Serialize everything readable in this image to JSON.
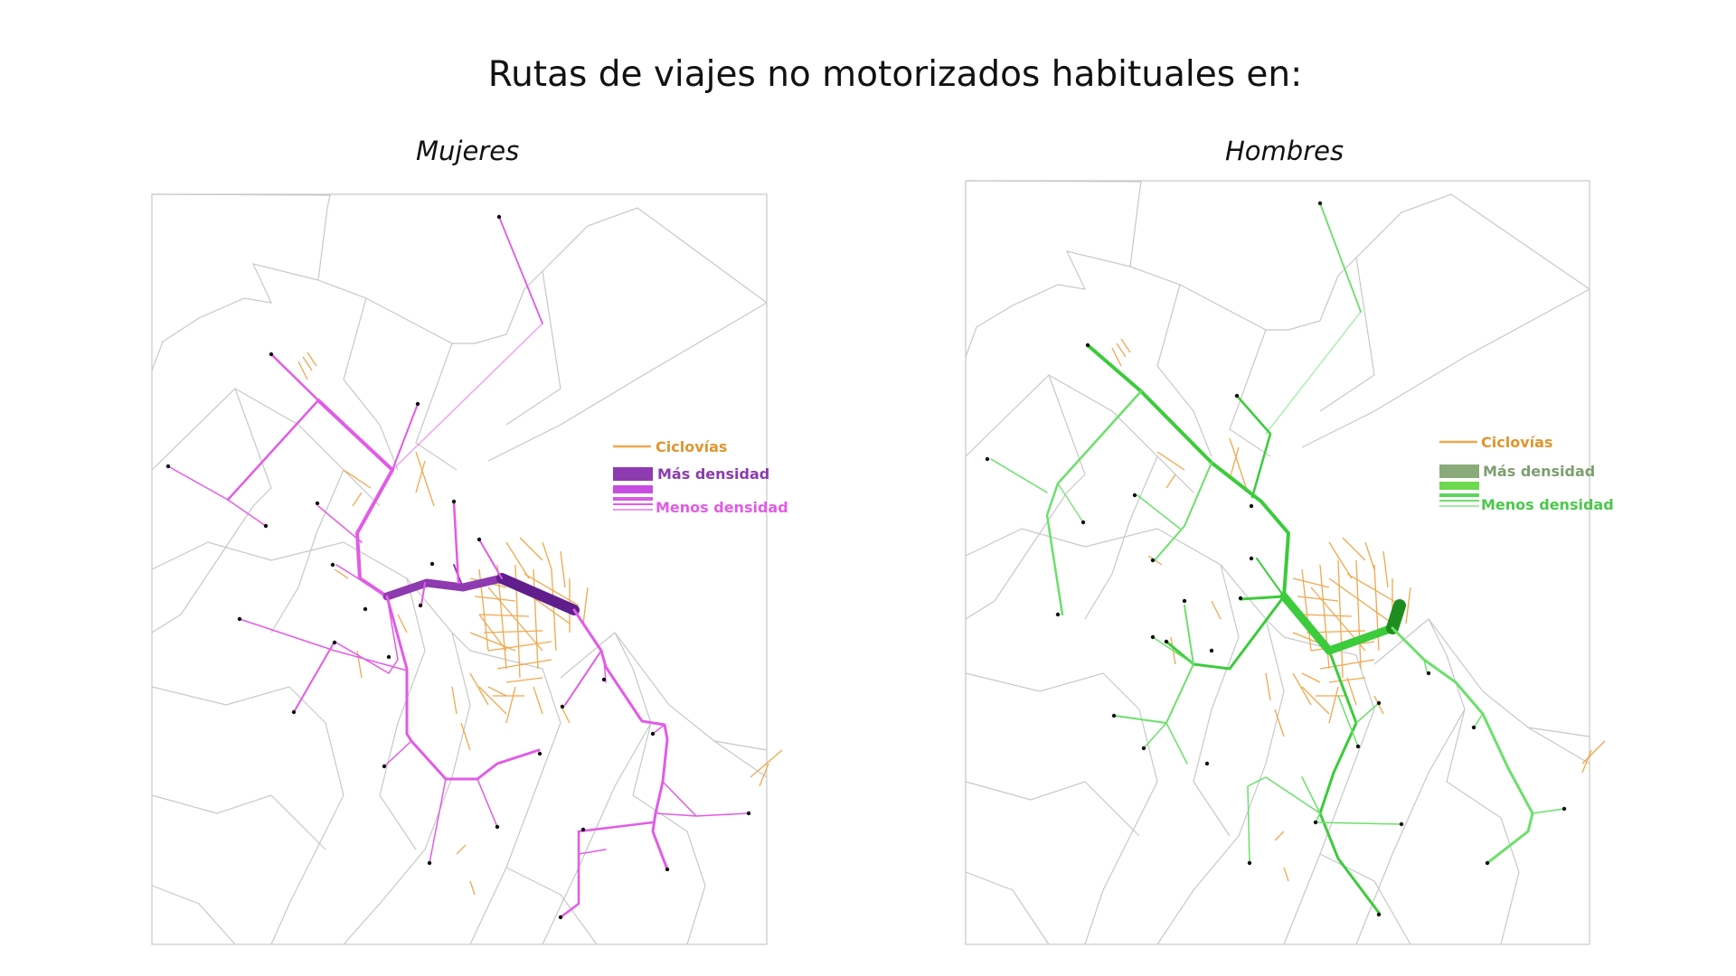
{
  "title": "Rutas de viajes no motorizados habituales en:",
  "colors": {
    "bike_lanes": "#F0A84E",
    "boundaries": "#C8C8C8",
    "mujeres_dark": "#5F1E8C",
    "mujeres_mid": "#8E3AB0",
    "mujeres_light": "#E25BE6",
    "hombres_dark": "#1E8C1E",
    "hombres_mid": "#3CCB3C",
    "hombres_light": "#6BE06B",
    "hombres_legend_high": "#8AAA7A"
  },
  "maps": [
    {
      "id": "mujeres",
      "title": "Mujeres",
      "legend": {
        "bike_lanes_label": "Ciclovías",
        "high_label": "Más densidad",
        "low_label": "Menos densidad"
      }
    },
    {
      "id": "hombres",
      "title": "Hombres",
      "legend": {
        "bike_lanes_label": "Ciclovías",
        "high_label": "Más densidad",
        "low_label": "Menos densidad"
      }
    }
  ]
}
